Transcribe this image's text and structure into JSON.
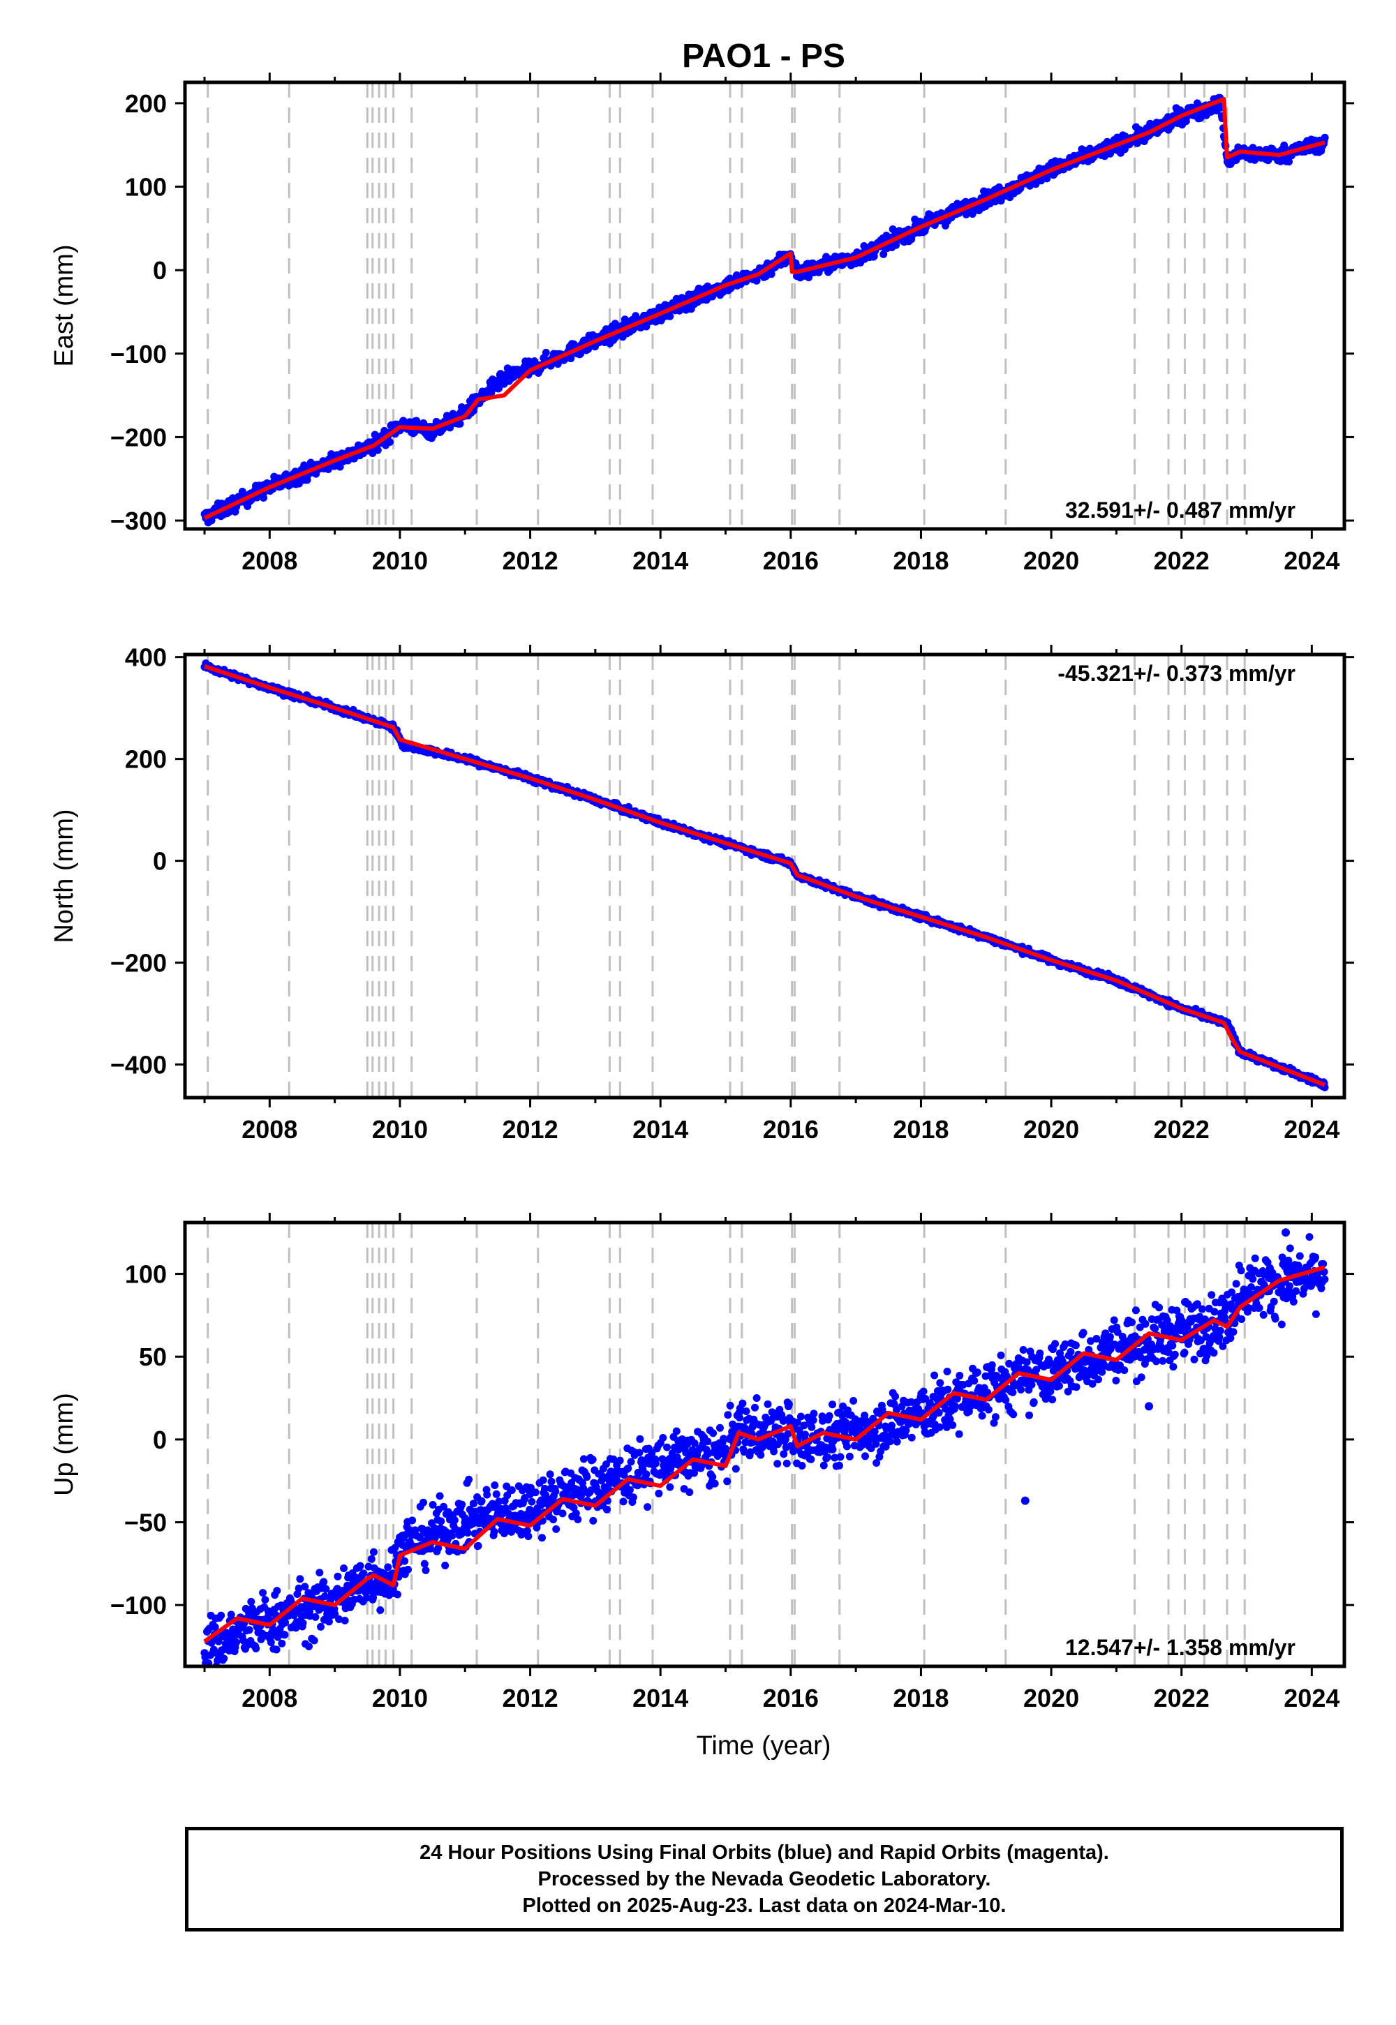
{
  "title": "PAO1 - PS",
  "xlabel": "Time (year)",
  "colors": {
    "data": "#0000ff",
    "model": "#ff0000",
    "event": "#c0c0c0",
    "frame": "#000000"
  },
  "events": [
    2007.05,
    2008.3,
    2009.5,
    2009.58,
    2009.68,
    2009.78,
    2009.9,
    2010.18,
    2011.18,
    2012.12,
    2013.22,
    2013.38,
    2013.88,
    2015.07,
    2015.25,
    2016.02,
    2016.06,
    2016.75,
    2018.05,
    2019.3,
    2021.28,
    2021.8,
    2022.05,
    2022.35,
    2022.7,
    2022.97
  ],
  "footer": {
    "line1": "24 Hour Positions Using Final Orbits (blue) and Rapid Orbits (magenta).",
    "line2": "Processed by the Nevada Geodetic Laboratory.",
    "line3": "Plotted on 2025-Aug-23. Last data on 2024-Mar-10."
  },
  "chart_data": [
    {
      "type": "scatter",
      "ylabel": "East (mm)",
      "rate_label": "32.591+/- 0.487 mm/yr",
      "rate_position": "bottom-right",
      "xlim": [
        2006.7,
        2024.5
      ],
      "ylim": [
        -310,
        225
      ],
      "xticks": [
        "2008",
        "2010",
        "2012",
        "2014",
        "2016",
        "2018",
        "2020",
        "2022",
        "2024"
      ],
      "yticks": [
        "−300",
        "−200",
        "−100",
        "0",
        "100",
        "200"
      ],
      "series": [
        {
          "role": "data",
          "x": [
            2007.0,
            2008.0,
            2009.0,
            2009.6,
            2010.0,
            2010.5,
            2011.0,
            2011.2,
            2011.6,
            2012.0,
            2013.0,
            2014.0,
            2015.0,
            2015.5,
            2016.0,
            2016.1,
            2017.0,
            2018.0,
            2019.0,
            2020.0,
            2021.0,
            2021.5,
            2022.0,
            2022.6,
            2022.7,
            2022.9,
            2023.5,
            2024.2
          ],
          "y": [
            -297,
            -260,
            -228,
            -210,
            -185,
            -192,
            -172,
            -155,
            -130,
            -118,
            -85,
            -52,
            -18,
            -5,
            18,
            -3,
            15,
            52,
            85,
            120,
            150,
            165,
            185,
            200,
            130,
            140,
            138,
            153
          ]
        },
        {
          "role": "model",
          "x": [
            2007.0,
            2008.0,
            2009.0,
            2009.6,
            2010.0,
            2010.5,
            2011.0,
            2011.2,
            2011.6,
            2012.0,
            2013.0,
            2014.0,
            2015.0,
            2015.5,
            2016.0,
            2016.02,
            2016.1,
            2017.0,
            2018.0,
            2019.0,
            2020.0,
            2021.0,
            2021.5,
            2022.0,
            2022.65,
            2022.7,
            2022.9,
            2023.5,
            2024.2
          ],
          "y": [
            -297,
            -260,
            -228,
            -210,
            -188,
            -190,
            -175,
            -155,
            -150,
            -120,
            -85,
            -52,
            -18,
            -5,
            20,
            -2,
            -2,
            15,
            52,
            85,
            120,
            150,
            165,
            185,
            205,
            135,
            142,
            138,
            153
          ]
        }
      ]
    },
    {
      "type": "scatter",
      "ylabel": "North (mm)",
      "rate_label": "-45.321+/- 0.373 mm/yr",
      "rate_position": "top-right",
      "xlim": [
        2006.7,
        2024.5
      ],
      "ylim": [
        -465,
        405
      ],
      "xticks": [
        "2008",
        "2010",
        "2012",
        "2014",
        "2016",
        "2018",
        "2020",
        "2022",
        "2024"
      ],
      "yticks": [
        "−400",
        "−200",
        "0",
        "200",
        "400"
      ],
      "series": [
        {
          "role": "data",
          "x": [
            2007.0,
            2008.0,
            2009.0,
            2009.9,
            2010.05,
            2011.0,
            2012.0,
            2013.0,
            2014.0,
            2015.0,
            2016.0,
            2016.1,
            2017.0,
            2018.0,
            2019.0,
            2020.0,
            2021.0,
            2022.0,
            2022.7,
            2022.9,
            2024.2
          ],
          "y": [
            382,
            340,
            300,
            262,
            228,
            200,
            162,
            120,
            75,
            35,
            -5,
            -28,
            -70,
            -110,
            -150,
            -195,
            -235,
            -290,
            -320,
            -375,
            -440
          ]
        },
        {
          "role": "model",
          "x": [
            2007.0,
            2008.0,
            2009.0,
            2009.9,
            2010.0,
            2011.0,
            2012.0,
            2013.0,
            2014.0,
            2015.0,
            2016.0,
            2016.1,
            2017.0,
            2018.0,
            2019.0,
            2020.0,
            2021.0,
            2022.0,
            2022.65,
            2022.8,
            2022.9,
            2024.2
          ],
          "y": [
            382,
            340,
            300,
            262,
            238,
            200,
            162,
            120,
            75,
            35,
            -5,
            -28,
            -70,
            -110,
            -150,
            -195,
            -235,
            -290,
            -318,
            -355,
            -375,
            -440
          ]
        }
      ]
    },
    {
      "type": "scatter",
      "ylabel": "Up (mm)",
      "rate_label": "12.547+/- 1.358 mm/yr",
      "rate_position": "bottom-right",
      "xlim": [
        2006.7,
        2024.5
      ],
      "ylim": [
        -137,
        131
      ],
      "xticks": [
        "2008",
        "2010",
        "2012",
        "2014",
        "2016",
        "2018",
        "2020",
        "2022",
        "2024"
      ],
      "yticks": [
        "−100",
        "−50",
        "0",
        "50",
        "100"
      ],
      "outliers": {
        "x": [
          2019.6,
          2021.5,
          2023.6
        ],
        "y": [
          -37,
          20,
          125
        ]
      },
      "series": [
        {
          "role": "data",
          "x": [
            2007.0,
            2008.0,
            2009.0,
            2009.6,
            2009.9,
            2010.0,
            2011.0,
            2012.0,
            2013.0,
            2014.0,
            2015.0,
            2015.2,
            2016.0,
            2016.1,
            2017.0,
            2018.0,
            2019.0,
            2020.0,
            2021.0,
            2022.0,
            2022.7,
            2022.9,
            2024.2
          ],
          "y": [
            -125,
            -110,
            -98,
            -82,
            -85,
            -65,
            -50,
            -40,
            -28,
            -15,
            -8,
            5,
            5,
            -2,
            5,
            15,
            30,
            40,
            55,
            65,
            72,
            90,
            100
          ]
        },
        {
          "role": "model",
          "x": [
            2007.0,
            2007.5,
            2008.0,
            2008.5,
            2009.0,
            2009.5,
            2009.6,
            2009.9,
            2010.0,
            2010.5,
            2011.0,
            2011.5,
            2012.0,
            2012.5,
            2013.0,
            2013.5,
            2014.0,
            2014.5,
            2015.0,
            2015.2,
            2015.5,
            2016.0,
            2016.1,
            2016.5,
            2017.0,
            2017.5,
            2018.0,
            2018.5,
            2019.0,
            2019.5,
            2020.0,
            2020.5,
            2021.0,
            2021.5,
            2022.0,
            2022.5,
            2022.7,
            2022.9,
            2023.5,
            2024.2
          ],
          "y": [
            -122,
            -108,
            -112,
            -96,
            -100,
            -84,
            -82,
            -88,
            -70,
            -62,
            -66,
            -48,
            -52,
            -36,
            -40,
            -24,
            -28,
            -12,
            -16,
            4,
            0,
            8,
            -4,
            4,
            0,
            16,
            12,
            28,
            24,
            40,
            36,
            52,
            48,
            64,
            60,
            72,
            68,
            80,
            96,
            104
          ]
        }
      ]
    }
  ]
}
